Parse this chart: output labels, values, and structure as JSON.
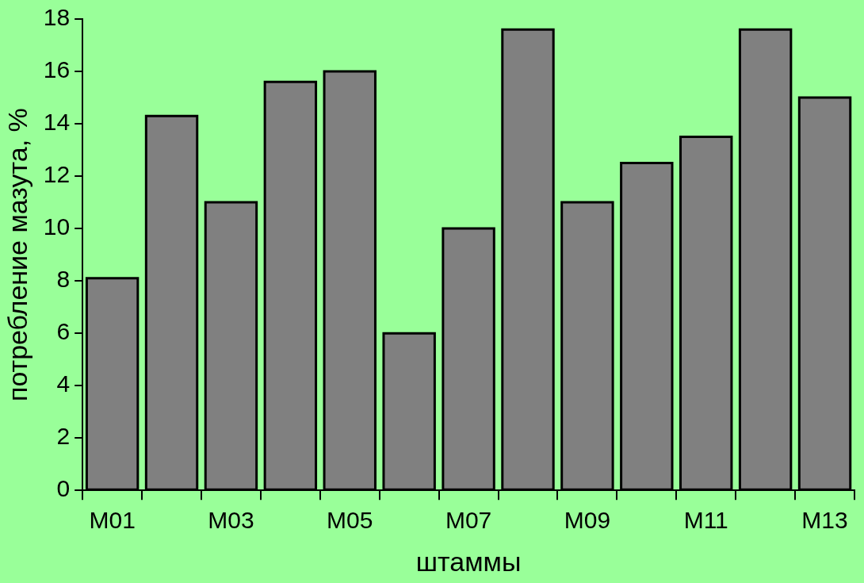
{
  "chart_data": {
    "type": "bar",
    "xlabel": "штаммы",
    "ylabel": "потребление мазута, %",
    "categories": [
      "M01",
      null,
      "M03",
      null,
      "M05",
      null,
      "M07",
      null,
      "M09",
      null,
      "M11",
      null,
      "M13"
    ],
    "values": [
      8.1,
      14.3,
      11.0,
      15.6,
      16.0,
      6.0,
      10.0,
      17.6,
      11.0,
      12.5,
      13.5,
      17.6,
      15.0
    ],
    "color": "#808080",
    "ylim": [
      0,
      18
    ],
    "yticks": [
      0,
      2,
      4,
      6,
      8,
      10,
      12,
      14,
      16,
      18
    ],
    "grid": false,
    "legend": false
  }
}
